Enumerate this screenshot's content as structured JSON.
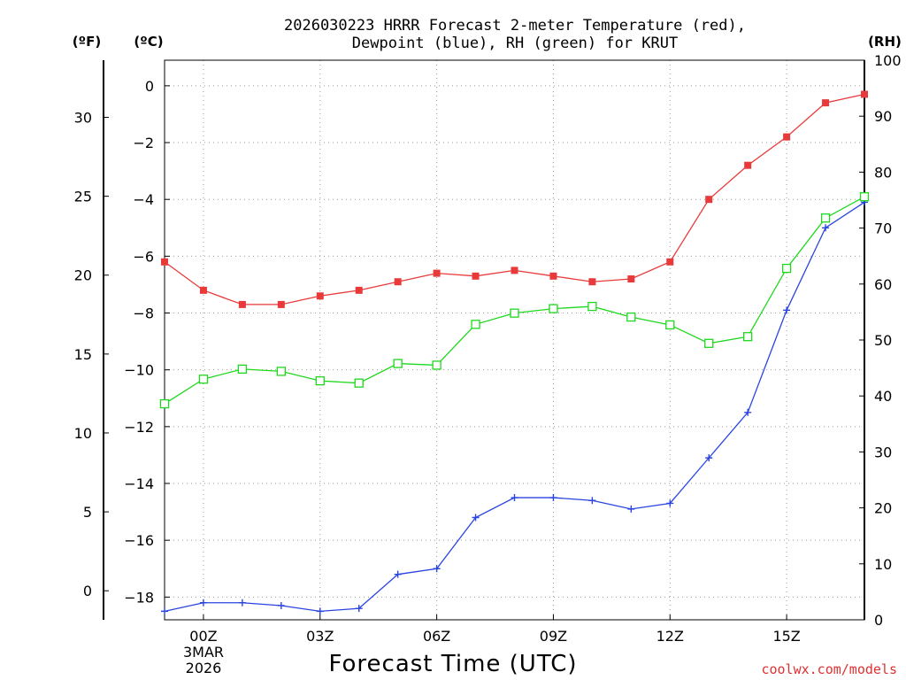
{
  "chart_data": {
    "type": "line",
    "title_line1": "2026030223 HRRR Forecast 2-meter Temperature (red),",
    "title_line2": "Dewpoint (blue), RH (green) for KRUT",
    "xlabel": "Forecast Time (UTC)",
    "x_ticks": [
      "00Z",
      "03Z",
      "06Z",
      "09Z",
      "12Z",
      "15Z"
    ],
    "x_tick_hours": [
      0,
      3,
      6,
      9,
      12,
      15
    ],
    "date_label_line1": "3MAR",
    "date_label_line2": "2026",
    "x_range_hours": [
      -1,
      17
    ],
    "celsius_axis": {
      "unit_label": "(ºC)",
      "range": [
        -18.8,
        0.9
      ],
      "ticks": [
        0,
        -2,
        -4,
        -6,
        -8,
        -10,
        -12,
        -14,
        -16,
        -18
      ]
    },
    "fahrenheit_axis": {
      "unit_label": "(ºF)",
      "ticks": [
        30,
        25,
        20,
        15,
        10,
        5,
        0
      ]
    },
    "rh_axis": {
      "unit_label": "(RH)",
      "range": [
        0,
        100
      ],
      "ticks": [
        0,
        10,
        20,
        30,
        40,
        50,
        60,
        70,
        80,
        90,
        100
      ]
    },
    "x": [
      -1,
      0,
      1,
      2,
      3,
      4,
      5,
      6,
      7,
      8,
      9,
      10,
      11,
      12,
      13,
      14,
      15,
      16,
      17
    ],
    "series": [
      {
        "name": "2-meter Temperature",
        "color": "#e83a3a",
        "axis": "celsius",
        "marker": "filled-square",
        "values": [
          -6.2,
          -7.2,
          -7.7,
          -7.7,
          -7.4,
          -7.2,
          -6.9,
          -6.6,
          -6.7,
          -6.5,
          -6.7,
          -6.9,
          -6.8,
          -6.2,
          -4.0,
          -2.8,
          -1.8,
          -0.6,
          -0.3
        ]
      },
      {
        "name": "Dewpoint",
        "color": "#2a44e0",
        "axis": "celsius",
        "marker": "plus",
        "values": [
          -18.5,
          -18.2,
          -18.2,
          -18.3,
          -18.5,
          -18.4,
          -17.2,
          -17.0,
          -15.2,
          -14.5,
          -14.5,
          -14.6,
          -14.9,
          -14.7,
          -13.1,
          -11.5,
          -7.9,
          -5.0,
          -4.1
        ]
      },
      {
        "name": "RH",
        "color": "#1ed81e",
        "axis": "rh",
        "marker": "open-square",
        "values": [
          38.6,
          43.0,
          44.8,
          44.4,
          42.7,
          42.3,
          45.8,
          45.5,
          52.8,
          54.8,
          55.6,
          56.0,
          54.1,
          52.7,
          49.4,
          50.6,
          62.8,
          71.8,
          75.6
        ]
      }
    ]
  },
  "credit": "coolwx.com/models"
}
